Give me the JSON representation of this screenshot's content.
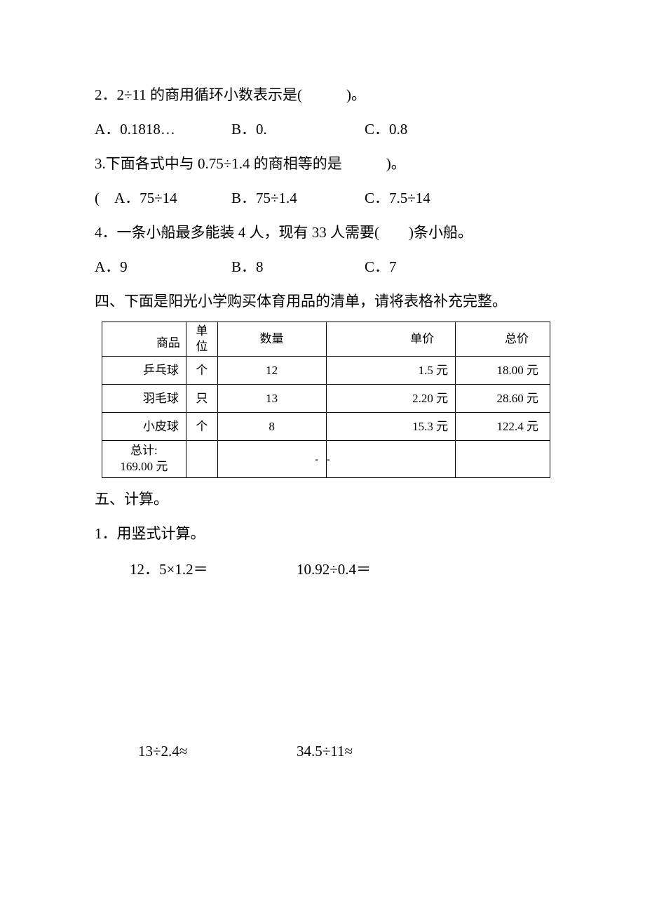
{
  "q2": {
    "text": "2．2÷11 的商用循环小数表示是(　　　)。",
    "a": "A．0.1818…",
    "b": "B．0.",
    "c": "C．0.8"
  },
  "q3": {
    "text": "3.下面各式中与 0.75÷1.4 的商相等的是　　　)。",
    "prefix": "(　A．75÷14",
    "b": "B．75÷1.4",
    "c": "C．7.5÷14"
  },
  "q4": {
    "text": "4．一条小船最多能装 4 人，现有 33 人需要(　　)条小船。",
    "a": "A．9",
    "b": "B．8",
    "c": "C．7"
  },
  "section4": {
    "heading": "四、下面是阳光小学购买体育用品的清单，请将表格补充完整。"
  },
  "table": {
    "headers": {
      "product": "商品",
      "unit_top": "单",
      "unit_bottom": "位",
      "qty": "数量",
      "price": "单价",
      "total": "总价"
    },
    "rows": [
      {
        "product": "乒乓球",
        "unit": "个",
        "qty": "12",
        "price": "1.5 元",
        "total": "18.00 元"
      },
      {
        "product": "羽毛球",
        "unit": "只",
        "qty": "13",
        "price": "2.20 元",
        "total": "28.60 元"
      },
      {
        "product": "小皮球",
        "unit": "个",
        "qty": "8",
        "price": "15.3 元",
        "total": "122.4 元"
      }
    ],
    "total_label_1": "总计:",
    "total_label_2": "169.00 元"
  },
  "section5": {
    "heading": "五、计算。",
    "sub1": "1．用竖式计算。"
  },
  "calc": {
    "p1": "12．5×1.2＝",
    "p2": "10.92÷0.4＝",
    "p3": "13÷2.4≈",
    "p4": "34.5÷11≈"
  }
}
